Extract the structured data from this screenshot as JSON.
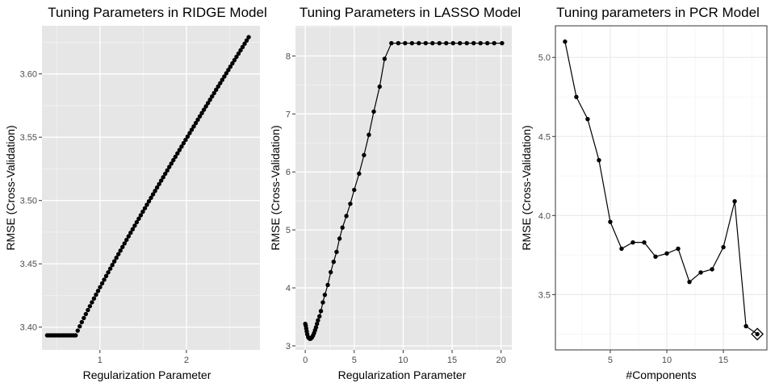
{
  "chart_data": [
    {
      "type": "scatter",
      "title": "Tuning Parameters in RIDGE Model",
      "xlabel": "Regularization Parameter",
      "ylabel": "RMSE (Cross-Validation)",
      "xlim": [
        0.33,
        2.85
      ],
      "ylim": [
        3.382,
        3.638
      ],
      "xticks": [
        1,
        2
      ],
      "yticks": [
        3.4,
        3.45,
        3.5,
        3.55,
        3.6
      ],
      "ytick_labels": [
        "3.40",
        "3.45",
        "3.50",
        "3.55",
        "3.60"
      ],
      "theme": "gray",
      "grid": true,
      "line": false,
      "series": [
        {
          "values": {
            "x_start": 0.39,
            "x_end": 2.72,
            "n": 100,
            "flat_level": 3.3935,
            "flat_until": 0.72,
            "y_end": 3.629
          }
        }
      ]
    },
    {
      "type": "line",
      "title": "Tuning Parameters in LASSO Model",
      "xlabel": "Regularization Parameter",
      "ylabel": "RMSE (Cross-Validation)",
      "xlim": [
        -1.0,
        21.1
      ],
      "ylim": [
        2.93,
        8.52
      ],
      "xticks": [
        0,
        5,
        10,
        15,
        20
      ],
      "yticks": [
        3,
        4,
        5,
        6,
        7,
        8
      ],
      "theme": "gray",
      "grid": true,
      "line": true,
      "series": [
        {
          "x": [
            0.0,
            0.05,
            0.1,
            0.15,
            0.2,
            0.3,
            0.4,
            0.5,
            0.6,
            0.7,
            0.8,
            0.9,
            1.0,
            1.1,
            1.2,
            1.3,
            1.45,
            1.6,
            1.8,
            2.0,
            2.3,
            2.6,
            2.9,
            3.2,
            3.5,
            3.8,
            4.2,
            4.6,
            5.0,
            5.5,
            6.0,
            6.5,
            7.0,
            7.6,
            8.1,
            8.8,
            9.5,
            10.2,
            10.9,
            11.6,
            12.3,
            13.0,
            13.7,
            14.4,
            15.1,
            15.8,
            16.5,
            17.2,
            17.9,
            18.6,
            19.3,
            20.1
          ],
          "y": [
            3.38,
            3.35,
            3.3,
            3.25,
            3.2,
            3.15,
            3.13,
            3.12,
            3.13,
            3.15,
            3.18,
            3.22,
            3.27,
            3.32,
            3.38,
            3.44,
            3.51,
            3.6,
            3.75,
            3.88,
            4.05,
            4.27,
            4.45,
            4.62,
            4.85,
            5.04,
            5.24,
            5.45,
            5.69,
            5.97,
            6.29,
            6.64,
            7.04,
            7.47,
            7.95,
            8.22,
            8.22,
            8.22,
            8.22,
            8.22,
            8.22,
            8.22,
            8.22,
            8.22,
            8.22,
            8.22,
            8.22,
            8.22,
            8.22,
            8.22,
            8.22,
            8.22
          ]
        }
      ]
    },
    {
      "type": "line",
      "title": "Tuning parameters in PCR Model",
      "xlabel": "#Components",
      "ylabel": "RMSE (Cross-Validation)",
      "xlim": [
        0.15,
        18.85
      ],
      "ylim": [
        3.15,
        5.2
      ],
      "xticks": [
        5,
        10,
        15
      ],
      "yticks": [
        3.5,
        4.0,
        4.5,
        5.0
      ],
      "ytick_labels": [
        "3.5",
        "4.0",
        "4.5",
        "5.0"
      ],
      "theme": "bw",
      "grid": true,
      "line": true,
      "series": [
        {
          "x": [
            1,
            2,
            3,
            4,
            5,
            6,
            7,
            8,
            9,
            10,
            11,
            12,
            13,
            14,
            15,
            16,
            17,
            18
          ],
          "y": [
            5.1,
            4.75,
            4.61,
            4.35,
            3.96,
            3.79,
            3.83,
            3.83,
            3.74,
            3.76,
            3.79,
            3.58,
            3.64,
            3.66,
            3.8,
            4.09,
            3.3,
            3.25
          ]
        }
      ],
      "highlight": {
        "x": 18,
        "y": 3.25,
        "marker": "diamond"
      }
    }
  ]
}
